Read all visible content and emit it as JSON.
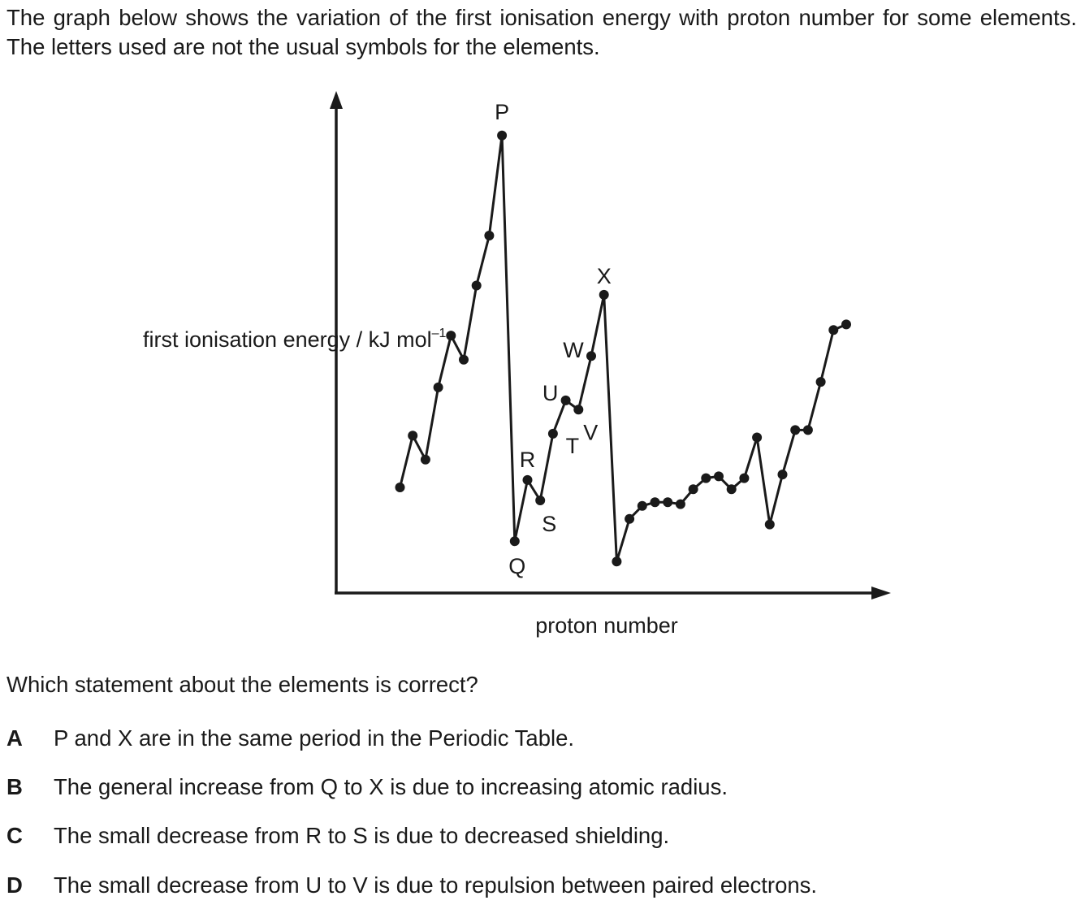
{
  "question": {
    "intro": "The graph below shows the variation of the first ionisation energy with proton number for some elements. The letters used are not the usual symbols for the elements.",
    "stem": "Which statement about the elements is correct?",
    "options": [
      {
        "letter": "A",
        "text": "P and X are in the same period in the Periodic Table."
      },
      {
        "letter": "B",
        "text": "The general increase from Q to X is due to increasing atomic radius."
      },
      {
        "letter": "C",
        "text": "The small decrease from R to S is due to decreased shielding."
      },
      {
        "letter": "D",
        "text": "The small decrease from U to V is due to repulsion between paired electrons."
      }
    ]
  },
  "chart_data": {
    "type": "line",
    "xlabel": "proton number",
    "ylabel_main": "first ionisation energy / kJ mol",
    "ylabel_sup": "–1",
    "grid": false,
    "axis_ticks": false,
    "xlim": [
      0,
      44
    ],
    "ylim": [
      0,
      2600
    ],
    "x": [
      5,
      6,
      7,
      8,
      9,
      10,
      11,
      12,
      13,
      14,
      15,
      16,
      17,
      18,
      19,
      20,
      21,
      22,
      23,
      24,
      25,
      26,
      27,
      28,
      29,
      30,
      31,
      32,
      33,
      34,
      35,
      36,
      37,
      38,
      39,
      40
    ],
    "values": [
      570,
      850,
      720,
      1110,
      1390,
      1260,
      1660,
      1930,
      2470,
      280,
      610,
      500,
      860,
      1040,
      990,
      1280,
      1610,
      170,
      400,
      470,
      490,
      490,
      480,
      560,
      620,
      630,
      560,
      620,
      840,
      370,
      640,
      880,
      880,
      1140,
      1420,
      1450
    ],
    "point_labels": [
      {
        "x": 13,
        "label": "P"
      },
      {
        "x": 14,
        "label": "Q"
      },
      {
        "x": 15,
        "label": "R"
      },
      {
        "x": 16,
        "label": "S"
      },
      {
        "x": 17,
        "label": "T"
      },
      {
        "x": 18,
        "label": "U"
      },
      {
        "x": 19,
        "label": "V"
      },
      {
        "x": 20,
        "label": "W"
      },
      {
        "x": 21,
        "label": "X"
      }
    ]
  }
}
